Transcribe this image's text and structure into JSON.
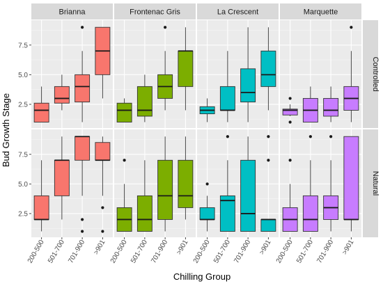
{
  "chart_data": {
    "type": "boxplot",
    "xlabel": "Chilling Group",
    "ylabel": "Bud Growth Stage",
    "categories": [
      "200-500",
      "501-700",
      "701-900",
      ">901"
    ],
    "column_facets": [
      "Brianna",
      "Frontenac Gris",
      "La Crescent",
      "Marquette"
    ],
    "row_facets": [
      "Controlled",
      "Natural"
    ],
    "yticks": [
      2.5,
      5.0,
      7.5
    ],
    "ytick_labels": [
      "2.5",
      "5.0",
      "7.5"
    ],
    "ylim": [
      0.5,
      9.6
    ],
    "grid": true,
    "legend": "none",
    "colors": {
      "Brianna": "#F8766D",
      "Frontenac Gris": "#7CAE00",
      "La Crescent": "#00BFC4",
      "Marquette": "#C77CFF"
    },
    "panels": [
      {
        "row": "Controlled",
        "col": "Brianna",
        "boxes": [
          {
            "cat": "200-500",
            "min": 1,
            "q1": 1,
            "median": 2,
            "q3": 2.6,
            "max": 4,
            "outliers": []
          },
          {
            "cat": "501-700",
            "min": 2,
            "q1": 2.6,
            "median": 3,
            "q3": 4,
            "max": 5,
            "outliers": []
          },
          {
            "cat": "701-900",
            "min": 1,
            "q1": 2.7,
            "median": 4,
            "q3": 5,
            "max": 7,
            "outliers": [
              9
            ]
          },
          {
            "cat": ">901",
            "min": 3,
            "q1": 5,
            "median": 7,
            "q3": 9,
            "max": 9,
            "outliers": []
          }
        ]
      },
      {
        "row": "Controlled",
        "col": "Frontenac Gris",
        "boxes": [
          {
            "cat": "200-500",
            "min": 1,
            "q1": 1,
            "median": 2,
            "q3": 2.6,
            "max": 3,
            "outliers": []
          },
          {
            "cat": "501-700",
            "min": 1,
            "q1": 1.5,
            "median": 2,
            "q3": 4,
            "max": 5,
            "outliers": []
          },
          {
            "cat": "701-900",
            "min": 2,
            "q1": 3,
            "median": 4,
            "q3": 5,
            "max": 7,
            "outliers": [
              9
            ]
          },
          {
            "cat": ">901",
            "min": 2,
            "q1": 4,
            "median": 7,
            "q3": 7,
            "max": 9,
            "outliers": []
          }
        ]
      },
      {
        "row": "Controlled",
        "col": "La Crescent",
        "boxes": [
          {
            "cat": "200-500",
            "min": 1,
            "q1": 1.7,
            "median": 2,
            "q3": 2.3,
            "max": 3,
            "outliers": []
          },
          {
            "cat": "501-700",
            "min": 1,
            "q1": 2,
            "median": 2,
            "q3": 4,
            "max": 7,
            "outliers": []
          },
          {
            "cat": "701-900",
            "min": 1,
            "q1": 2.7,
            "median": 3.5,
            "q3": 5.5,
            "max": 9,
            "outliers": []
          },
          {
            "cat": ">901",
            "min": 2,
            "q1": 4,
            "median": 5,
            "q3": 7,
            "max": 9,
            "outliers": []
          }
        ]
      },
      {
        "row": "Controlled",
        "col": "Marquette",
        "boxes": [
          {
            "cat": "200-500",
            "min": 1.5,
            "q1": 1.6,
            "median": 2,
            "q3": 2.1,
            "max": 2.5,
            "outliers": [
              1,
              3
            ]
          },
          {
            "cat": "501-700",
            "min": 1,
            "q1": 1,
            "median": 2,
            "q3": 3,
            "max": 4,
            "outliers": []
          },
          {
            "cat": "701-900",
            "min": 1,
            "q1": 1.5,
            "median": 2,
            "q3": 3,
            "max": 4,
            "outliers": []
          },
          {
            "cat": ">901",
            "min": 1,
            "q1": 2,
            "median": 3,
            "q3": 4,
            "max": 7,
            "outliers": [
              9
            ]
          }
        ]
      },
      {
        "row": "Natural",
        "col": "Brianna",
        "boxes": [
          {
            "cat": "200-500",
            "min": 1,
            "q1": 2,
            "median": 2,
            "q3": 4,
            "max": 7,
            "outliers": []
          },
          {
            "cat": "501-700",
            "min": 2,
            "q1": 4,
            "median": 7,
            "q3": 7,
            "max": 9,
            "outliers": []
          },
          {
            "cat": "701-900",
            "min": 4,
            "q1": 7,
            "median": 9,
            "q3": 9,
            "max": 9,
            "outliers": [
              1,
              2
            ]
          },
          {
            "cat": ">901",
            "min": 4,
            "q1": 7,
            "median": 7,
            "q3": 8.5,
            "max": 9,
            "outliers": [
              1,
              3
            ]
          }
        ]
      },
      {
        "row": "Natural",
        "col": "Frontenac Gris",
        "boxes": [
          {
            "cat": "200-500",
            "min": 1,
            "q1": 1,
            "median": 2,
            "q3": 3,
            "max": 5,
            "outliers": [
              7
            ]
          },
          {
            "cat": "501-700",
            "min": 1,
            "q1": 1,
            "median": 2,
            "q3": 4,
            "max": 7,
            "outliers": []
          },
          {
            "cat": "701-900",
            "min": 1,
            "q1": 2,
            "median": 4,
            "q3": 7,
            "max": 9,
            "outliers": []
          },
          {
            "cat": ">901",
            "min": 2,
            "q1": 3,
            "median": 4,
            "q3": 7,
            "max": 9,
            "outliers": []
          }
        ]
      },
      {
        "row": "Natural",
        "col": "La Crescent",
        "boxes": [
          {
            "cat": "200-500",
            "min": 1,
            "q1": 2,
            "median": 2,
            "q3": 3,
            "max": 4,
            "outliers": [
              5
            ]
          },
          {
            "cat": "501-700",
            "min": 1,
            "q1": 1,
            "median": 3.6,
            "q3": 4,
            "max": 7,
            "outliers": [
              9
            ]
          },
          {
            "cat": "701-900",
            "min": 1,
            "q1": 1,
            "median": 2.5,
            "q3": 7,
            "max": 9,
            "outliers": []
          },
          {
            "cat": ">901",
            "min": 1,
            "q1": 1,
            "median": 2,
            "q3": 2,
            "max": 2,
            "outliers": [
              7,
              9
            ]
          }
        ]
      },
      {
        "row": "Natural",
        "col": "Marquette",
        "boxes": [
          {
            "cat": "200-500",
            "min": 1,
            "q1": 1,
            "median": 2,
            "q3": 3,
            "max": 5,
            "outliers": [
              7
            ]
          },
          {
            "cat": "501-700",
            "min": 1,
            "q1": 1,
            "median": 2,
            "q3": 4,
            "max": 7,
            "outliers": [
              9
            ]
          },
          {
            "cat": "701-900",
            "min": 1,
            "q1": 2,
            "median": 3,
            "q3": 4,
            "max": 7,
            "outliers": [
              9
            ]
          },
          {
            "cat": ">901",
            "min": 1,
            "q1": 2,
            "median": 2,
            "q3": 9,
            "max": 9,
            "outliers": []
          }
        ]
      }
    ]
  }
}
